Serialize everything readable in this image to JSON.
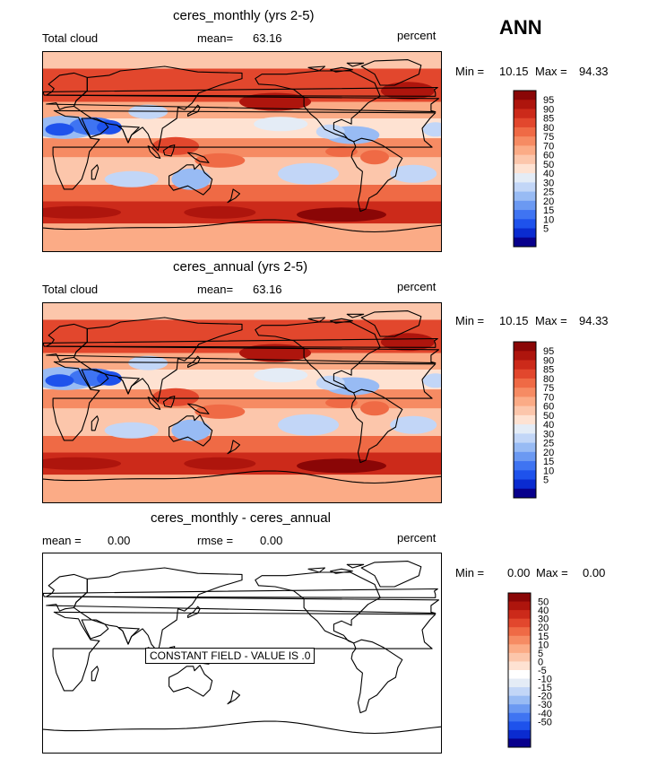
{
  "season": "ANN",
  "colors": {
    "seq_levels": [
      "#08008c",
      "#0a2bd0",
      "#1e52ec",
      "#3f74f2",
      "#6b99f2",
      "#98bbf4",
      "#c2d6f7",
      "#e4ecf6",
      "#fee2d2",
      "#fcc6ab",
      "#fbab86",
      "#f68b63",
      "#ef6a45",
      "#e2472d",
      "#cc2a1a",
      "#ae150d",
      "#8a0606"
    ],
    "diff_levels": [
      "#08008c",
      "#0a2bd0",
      "#1e52ec",
      "#3f74f2",
      "#6b99f2",
      "#98bbf4",
      "#c2d6f7",
      "#e4ecf6",
      "#ffffff",
      "#fee2d2",
      "#fcc6ab",
      "#fbab86",
      "#f68b63",
      "#ef6a45",
      "#e2472d",
      "#cc2a1a",
      "#ae150d",
      "#8a0606"
    ]
  },
  "panels": [
    {
      "title": "ceres_monthly (yrs 2-5)",
      "left_label": "Total cloud",
      "mean_label": "mean=",
      "mean_value": "63.16",
      "units": "percent",
      "min_label": "Min =",
      "min_value": "10.15",
      "max_label": "Max =",
      "max_value": "94.33",
      "colorbar_labels": [
        "95",
        "90",
        "85",
        "80",
        "75",
        "70",
        "60",
        "50",
        "40",
        "30",
        "25",
        "20",
        "15",
        "10",
        "5"
      ]
    },
    {
      "title": "ceres_annual (yrs 2-5)",
      "left_label": "Total cloud",
      "mean_label": "mean=",
      "mean_value": "63.16",
      "units": "percent",
      "min_label": "Min =",
      "min_value": "10.15",
      "max_label": "Max =",
      "max_value": "94.33",
      "colorbar_labels": [
        "95",
        "90",
        "85",
        "80",
        "75",
        "70",
        "60",
        "50",
        "40",
        "30",
        "25",
        "20",
        "15",
        "10",
        "5"
      ]
    },
    {
      "title": "ceres_monthly - ceres_annual",
      "mean_label": "mean =",
      "mean_value": "0.00",
      "rmse_label": "rmse =",
      "rmse_value": "0.00",
      "units": "percent",
      "min_label": "Min =",
      "min_value": "0.00",
      "max_label": "Max =",
      "max_value": "0.00",
      "constant_note": "CONSTANT FIELD - VALUE IS .0",
      "colorbar_labels": [
        "50",
        "40",
        "30",
        "20",
        "15",
        "10",
        "5",
        "0",
        "-5",
        "-10",
        "-15",
        "-20",
        "-30",
        "-40",
        "-50"
      ]
    }
  ],
  "chart_data": [
    {
      "type": "heatmap",
      "title": "ceres_monthly (yrs 2-5)",
      "variable": "Total cloud",
      "units": "percent",
      "mean": 63.16,
      "min": 10.15,
      "max": 94.33,
      "levels": [
        5,
        10,
        15,
        20,
        25,
        30,
        40,
        50,
        60,
        70,
        75,
        80,
        85,
        90,
        95
      ]
    },
    {
      "type": "heatmap",
      "title": "ceres_annual (yrs 2-5)",
      "variable": "Total cloud",
      "units": "percent",
      "mean": 63.16,
      "min": 10.15,
      "max": 94.33,
      "levels": [
        5,
        10,
        15,
        20,
        25,
        30,
        40,
        50,
        60,
        70,
        75,
        80,
        85,
        90,
        95
      ]
    },
    {
      "type": "heatmap",
      "title": "ceres_monthly - ceres_annual",
      "units": "percent",
      "mean": 0.0,
      "rmse": 0.0,
      "min": 0.0,
      "max": 0.0,
      "constant_value": 0.0,
      "levels": [
        -50,
        -40,
        -30,
        -20,
        -15,
        -10,
        -5,
        0,
        5,
        10,
        15,
        20,
        30,
        40,
        50
      ]
    }
  ]
}
